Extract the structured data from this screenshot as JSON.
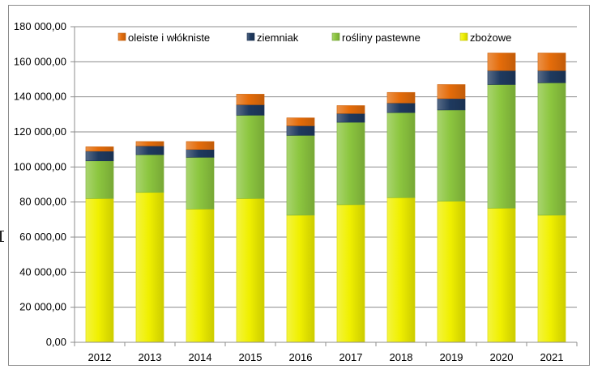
{
  "chart_data": {
    "type": "bar",
    "stacked": true,
    "categories": [
      "2012",
      "2013",
      "2014",
      "2015",
      "2016",
      "2017",
      "2018",
      "2019",
      "2020",
      "2021"
    ],
    "series": [
      {
        "name": "zbożowe",
        "color": "#f0f000",
        "values": [
          82000,
          85500,
          76000,
          82000,
          72500,
          78500,
          82500,
          80500,
          76500,
          72500
        ]
      },
      {
        "name": "rośliny pastewne",
        "color": "#8cc63f",
        "values": [
          21500,
          21500,
          29500,
          47500,
          45500,
          47000,
          48500,
          52000,
          70500,
          75500
        ]
      },
      {
        "name": "ziemniak",
        "color": "#1f3a5f",
        "values": [
          5500,
          5000,
          4500,
          6000,
          5500,
          5000,
          5500,
          6500,
          8000,
          7000
        ]
      },
      {
        "name": "oleiste i włókniste",
        "color": "#e46c0a",
        "values": [
          2500,
          2500,
          4500,
          6000,
          4500,
          4500,
          6000,
          8000,
          10000,
          10000
        ]
      }
    ],
    "legend_order": [
      "oleiste i włókniste",
      "ziemniak",
      "rośliny pastewne",
      "zbożowe"
    ],
    "ylim": [
      0,
      180000
    ],
    "yticks": [
      0,
      20000,
      40000,
      60000,
      80000,
      100000,
      120000,
      140000,
      160000,
      180000
    ],
    "ytick_labels": [
      "0,00",
      "20 000,00",
      "40 000,00",
      "60 000,00",
      "80 000,00",
      "100 000,00",
      "120 000,00",
      "140 000,00",
      "160 000,00",
      "180 000,00"
    ],
    "title": "",
    "xlabel": "",
    "ylabel": "",
    "grid": true,
    "legend_position": "top"
  }
}
